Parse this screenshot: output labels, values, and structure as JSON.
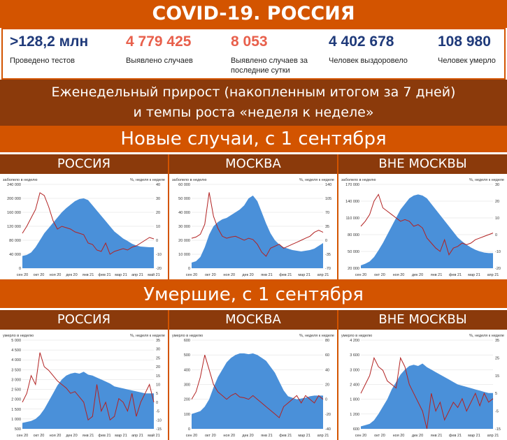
{
  "header": {
    "title": "COVID-19. РОССИЯ"
  },
  "stats": [
    {
      "value": ">128,2 млн",
      "label": "Проведено тестов",
      "color": "#1f3a7a"
    },
    {
      "value": "4 779 425",
      "label": "Выявлено случаев",
      "color": "#e8604c"
    },
    {
      "value": "8 053",
      "label": "Выявлено случаев за последние сутки",
      "color": "#e8604c"
    },
    {
      "value": "4 402 678",
      "label": "Человек выздоровело",
      "color": "#1f3a7a"
    },
    {
      "value": "108 980",
      "label": "Человек умерло",
      "color": "#1f3a7a"
    }
  ],
  "subtitle": {
    "line1": "Еженедельный прирост (накопленным итогом за 7 дней)",
    "line2": "и темпы роста «неделя к неделе»"
  },
  "sections": {
    "cases": "Новые случаи, с 1 сентября",
    "deaths": "Умершие, с 1 сентября"
  },
  "regions": [
    "РОССИЯ",
    "МОСКВА",
    "ВНЕ МОСКВЫ"
  ],
  "colors": {
    "area": "#4a90d9",
    "line": "#b22222",
    "accent": "#d35400",
    "dark": "#8b3a0b"
  },
  "chart_data": [
    {
      "type": "area",
      "region": "РОССИЯ",
      "metric": "cases",
      "left_label": "заболело в неделю",
      "right_label": "%, неделя к неделе",
      "x_ticks": [
        "сен 20",
        "окт 20",
        "ноя 20",
        "дек 20",
        "янв 21",
        "фев 21",
        "мар 21",
        "апр 21",
        "май 21"
      ],
      "left_ticks": [
        "240 000",
        "200 000",
        "160 000",
        "120 000",
        "80 000",
        "40 000",
        "0"
      ],
      "right_ticks": [
        "40",
        "30",
        "20",
        "10",
        "0",
        "-10",
        "-20"
      ],
      "ylim": [
        0,
        240000
      ],
      "y2lim": [
        -20,
        40
      ],
      "area_values": [
        35000,
        38000,
        45000,
        60000,
        80000,
        100000,
        115000,
        130000,
        145000,
        160000,
        172000,
        182000,
        192000,
        198000,
        200000,
        195000,
        180000,
        165000,
        150000,
        135000,
        120000,
        105000,
        95000,
        85000,
        78000,
        70000,
        65000,
        62000,
        61000,
        60000,
        60000
      ],
      "line_values": [
        5,
        10,
        16,
        22,
        34,
        32,
        24,
        14,
        8,
        10,
        9,
        8,
        6,
        5,
        4,
        -2,
        -3,
        -7,
        -8,
        -2,
        -10,
        -8,
        -7,
        -6,
        -7,
        -5,
        -4,
        -2,
        0,
        2,
        1
      ]
    },
    {
      "type": "area",
      "region": "МОСКВА",
      "metric": "cases",
      "left_label": "заболело в неделю",
      "right_label": "%, неделя к неделе",
      "x_ticks": [
        "сен 20",
        "окт 20",
        "ноя 20",
        "дек 20",
        "янв 21",
        "фев 21",
        "мар 21",
        "апр 21"
      ],
      "left_ticks": [
        "60 000",
        "50 000",
        "40 000",
        "30 000",
        "20 000",
        "10 000",
        "0"
      ],
      "right_ticks": [
        "140",
        "105",
        "70",
        "35",
        "0",
        "-35",
        "-70"
      ],
      "ylim": [
        0,
        60000
      ],
      "y2lim": [
        -70,
        140
      ],
      "area_values": [
        4000,
        5000,
        8000,
        15000,
        24000,
        30000,
        33000,
        35000,
        36000,
        38000,
        40000,
        42000,
        45000,
        50000,
        52000,
        48000,
        40000,
        32000,
        25000,
        20000,
        17000,
        15000,
        14000,
        13000,
        12500,
        12000,
        12500,
        13000,
        14000,
        16000,
        18000
      ],
      "line_values": [
        5,
        8,
        15,
        40,
        120,
        60,
        30,
        10,
        5,
        8,
        10,
        5,
        0,
        5,
        2,
        -10,
        -30,
        -40,
        -20,
        -15,
        -10,
        -20,
        -15,
        -10,
        -5,
        0,
        5,
        10,
        20,
        25,
        20
      ]
    },
    {
      "type": "area",
      "region": "ВНЕ МОСКВЫ",
      "metric": "cases",
      "left_label": "заболело в неделю",
      "right_label": "%, неделя к неделе",
      "x_ticks": [
        "сен 20",
        "окт 20",
        "ноя 20",
        "дек 20",
        "янв 21",
        "фев 21",
        "мар 21",
        "апр 21"
      ],
      "left_ticks": [
        "170 000",
        "140 000",
        "110 000",
        "80 000",
        "50 000",
        "20 000"
      ],
      "right_ticks": [
        "30",
        "20",
        "10",
        "0",
        "-10",
        "-20"
      ],
      "ylim": [
        20000,
        170000
      ],
      "y2lim": [
        -20,
        30
      ],
      "area_values": [
        25000,
        28000,
        32000,
        40000,
        52000,
        65000,
        80000,
        95000,
        110000,
        125000,
        135000,
        145000,
        150000,
        152000,
        150000,
        145000,
        135000,
        125000,
        115000,
        105000,
        95000,
        85000,
        75000,
        68000,
        62000,
        57000,
        53000,
        50000,
        48000,
        47000,
        47000
      ],
      "line_values": [
        5,
        8,
        12,
        20,
        24,
        16,
        14,
        12,
        10,
        8,
        9,
        8,
        5,
        6,
        4,
        -2,
        -5,
        -8,
        -10,
        -3,
        -12,
        -8,
        -7,
        -5,
        -6,
        -5,
        -3,
        -2,
        -1,
        0,
        1
      ]
    },
    {
      "type": "area",
      "region": "РОССИЯ",
      "metric": "deaths",
      "left_label": "умерло в неделю",
      "right_label": "%, неделя к неделе",
      "x_ticks": [
        "сен 20",
        "окт 20",
        "ноя 20",
        "дек 20",
        "янв 21",
        "фев 21",
        "мар 21",
        "апр 21",
        "май 21"
      ],
      "left_ticks": [
        "5 000",
        "4 500",
        "4 000",
        "3 500",
        "3 000",
        "2 500",
        "2 000",
        "1 500",
        "1 000",
        "500"
      ],
      "right_ticks": [
        "35",
        "30",
        "25",
        "20",
        "15",
        "10",
        "5",
        "0",
        "-5",
        "-10",
        "-15"
      ],
      "ylim": [
        500,
        5000
      ],
      "y2lim": [
        -15,
        35
      ],
      "area_values": [
        800,
        850,
        900,
        1000,
        1200,
        1500,
        1900,
        2300,
        2700,
        3000,
        3200,
        3300,
        3350,
        3300,
        3400,
        3250,
        3200,
        3100,
        3000,
        2900,
        2800,
        2650,
        2600,
        2550,
        2500,
        2450,
        2400,
        2350,
        2300,
        2300,
        2300
      ],
      "line_values": [
        0,
        5,
        15,
        10,
        28,
        20,
        18,
        15,
        12,
        10,
        8,
        5,
        6,
        3,
        0,
        -10,
        -8,
        10,
        -5,
        0,
        -10,
        -8,
        2,
        0,
        -5,
        5,
        -8,
        0,
        5,
        10,
        0
      ]
    },
    {
      "type": "area",
      "region": "МОСКВА",
      "metric": "deaths",
      "left_label": "умерло в неделю",
      "right_label": "%, неделя к неделе",
      "x_ticks": [
        "сен 20",
        "окт 20",
        "ноя 20",
        "дек 20",
        "янв 21",
        "фев 21",
        "мар 21",
        "апр 21"
      ],
      "left_ticks": [
        "600",
        "500",
        "400",
        "300",
        "200",
        "100",
        "0"
      ],
      "right_ticks": [
        "80",
        "60",
        "40",
        "20",
        "0",
        "-20",
        "-40"
      ],
      "ylim": [
        0,
        600
      ],
      "y2lim": [
        -40,
        80
      ],
      "area_values": [
        100,
        110,
        120,
        150,
        200,
        280,
        350,
        400,
        450,
        480,
        500,
        510,
        510,
        505,
        510,
        500,
        480,
        460,
        420,
        380,
        320,
        260,
        220,
        210,
        200,
        205,
        210,
        220,
        225,
        225,
        225
      ],
      "line_values": [
        0,
        10,
        30,
        60,
        40,
        20,
        10,
        5,
        0,
        5,
        8,
        3,
        2,
        0,
        5,
        0,
        -5,
        -10,
        -15,
        -20,
        -25,
        -10,
        -5,
        0,
        5,
        -5,
        5,
        0,
        -5,
        5,
        0
      ]
    },
    {
      "type": "area",
      "region": "ВНЕ МОСКВЫ",
      "metric": "deaths",
      "left_label": "умерло в неделю",
      "right_label": "%, неделя к неделе",
      "x_ticks": [
        "сен 20",
        "окт 20",
        "ноя 20",
        "дек 20",
        "янв 21",
        "фев 21",
        "мар 21",
        "апр 21"
      ],
      "left_ticks": [
        "4 200",
        "3 600",
        "3 000",
        "2 400",
        "1 800",
        "1 200",
        "600"
      ],
      "right_ticks": [
        "35",
        "25",
        "15",
        "5",
        "-5",
        "-15"
      ],
      "ylim": [
        600,
        4200
      ],
      "y2lim": [
        -15,
        35
      ],
      "area_values": [
        700,
        750,
        800,
        950,
        1200,
        1500,
        1800,
        2200,
        2500,
        2800,
        3000,
        3150,
        3200,
        3150,
        3250,
        3100,
        3000,
        2900,
        2800,
        2700,
        2600,
        2500,
        2400,
        2350,
        2300,
        2250,
        2200,
        2150,
        2100,
        2050,
        2050
      ],
      "line_values": [
        5,
        10,
        15,
        25,
        20,
        18,
        12,
        10,
        8,
        25,
        20,
        10,
        5,
        0,
        -5,
        -15,
        5,
        -5,
        0,
        -10,
        -5,
        0,
        -3,
        2,
        -5,
        0,
        5,
        -2,
        5,
        0,
        2
      ]
    }
  ]
}
